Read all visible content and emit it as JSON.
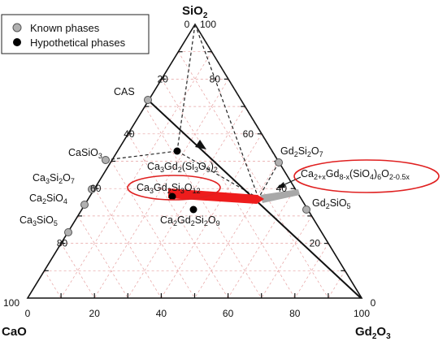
{
  "legend": [
    {
      "label": "Known phases",
      "marker": "known"
    },
    {
      "label": "Hypothetical phases",
      "marker": "hypothetical"
    }
  ],
  "vertices": {
    "top": {
      "name": "SiO",
      "sub": "2"
    },
    "left": {
      "name": "CaO"
    },
    "right": {
      "name": "Gd",
      "parts": [
        [
          "Gd",
          ""
        ],
        [
          "2",
          "sub"
        ],
        [
          "O",
          ""
        ],
        [
          "3",
          "sub"
        ]
      ]
    }
  },
  "axis_ticks": {
    "bottom": [
      "0",
      "20",
      "40",
      "60",
      "80",
      "100"
    ],
    "left": [
      "0",
      "20",
      "40",
      "60",
      "80",
      "100"
    ],
    "right": [
      "100",
      "80",
      "60",
      "40",
      "20",
      "0"
    ]
  },
  "known_phases": [
    {
      "id": "cas",
      "label": "CAS"
    },
    {
      "id": "casio3",
      "label": "CaSiO3"
    },
    {
      "id": "ca3si2o7",
      "label": "Ca3Si2O7"
    },
    {
      "id": "ca2sio4",
      "label": "Ca2SiO4"
    },
    {
      "id": "ca3sio5",
      "label": "Ca3SiO5"
    },
    {
      "id": "gd2si2o7",
      "label": "Gd2Si2O7"
    },
    {
      "id": "gd2sio5",
      "label": "Gd2SiO5"
    }
  ],
  "hypothetical_phases": [
    {
      "id": "ca3gd2si6o18",
      "label": "Ca3Gd2(Si3O9)2"
    },
    {
      "id": "ca3gd2si3o12",
      "label": "Ca3Gd2Si3O12"
    },
    {
      "id": "ca2gd2si2o9",
      "label": "Ca2Gd2Si2O9"
    }
  ],
  "callout": {
    "label": "Ca2+xGd8-x(SiO4)6O2-0.5x"
  },
  "colors": {
    "known_fill": "#b0b0b0",
    "hypo_fill": "#000000",
    "grid": "#e6a0a0",
    "arrow_red": "#ee1c1c",
    "arrow_gray": "#a8a8a8",
    "ellipse": "#e02020"
  }
}
